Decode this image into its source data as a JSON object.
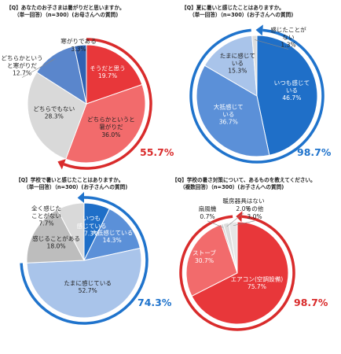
{
  "chart_data": [
    {
      "type": "pie",
      "title": "【Q】あなたのお子さまは暑がりだと思いますか。",
      "subtitle": "（単一回答）（n=300）(お母さんへの質問)",
      "total": "55.7%",
      "total_color": "#d92b2b",
      "slices": [
        {
          "label": "そうだと思う",
          "value": 19.7,
          "color": "#e8373a",
          "text_color": "#ffffff"
        },
        {
          "label": "どちらかといえば暑がりだ",
          "display": [
            "どちらかというと",
            "暑がりだ"
          ],
          "value": 36.0,
          "color": "#f26b6c",
          "text_color": "#222222"
        },
        {
          "label": "どちらでもない",
          "value": 28.3,
          "color": "#d9d9d9",
          "text_color": "#222222"
        },
        {
          "label": "どちらかというと寒がりだ",
          "display": [
            "どちらかという",
            "と寒がりだ"
          ],
          "value": 12.7,
          "color": "#5a86cc",
          "text_color": "#222222"
        },
        {
          "label": "寒がりである",
          "value": 3.3,
          "color": "#2f62b3",
          "text_color": "#222222"
        }
      ]
    },
    {
      "type": "pie",
      "title": "【Q】夏に暑いと感じたことはありますか。",
      "subtitle": "（単一回答）（n=300）(お子さんへの質問)",
      "total": "98.7%",
      "total_color": "#1f73cc",
      "slices": [
        {
          "label": "いつも感じている",
          "display": [
            "いつも感じて",
            "いる"
          ],
          "value": 46.7,
          "color": "#1f6fc8",
          "text_color": "#ffffff"
        },
        {
          "label": "大抵感じている",
          "display": [
            "大抵感じて",
            "いる"
          ],
          "value": 36.7,
          "color": "#5b90d8",
          "text_color": "#ffffff"
        },
        {
          "label": "たまに感じている",
          "display": [
            "たまに感じて",
            "いる"
          ],
          "value": 15.3,
          "color": "#a9c4ea",
          "text_color": "#222222"
        },
        {
          "label": "感じたことがない",
          "display": [
            "感じたことが",
            "ない"
          ],
          "value": 1.3,
          "color": "#dddddd",
          "text_color": "#222222"
        }
      ]
    },
    {
      "type": "pie",
      "title": "【Q】学校で暑いと感じたことはありますか。",
      "subtitle": "（単一回答）（n=300）(お子さんへの質問)",
      "total": "74.3%",
      "total_color": "#1f73cc",
      "slices": [
        {
          "label": "いつも感じている",
          "display": [
            "いつも",
            "感じている"
          ],
          "value": 7.3,
          "color": "#1f6fc8",
          "text_color": "#ffffff"
        },
        {
          "label": "大抵感じている",
          "value": 14.3,
          "color": "#5b90d8",
          "text_color": "#ffffff"
        },
        {
          "label": "たまに感じている",
          "value": 52.7,
          "color": "#a9c4ea",
          "text_color": "#222222"
        },
        {
          "label": "感じることがある",
          "value": 18.0,
          "color": "#bdbdbd",
          "text_color": "#222222"
        },
        {
          "label": "全く感じたことがない",
          "display": [
            "全く感じた",
            "ことがない"
          ],
          "value": 7.7,
          "color": "#d9d9d9",
          "text_color": "#222222"
        }
      ]
    },
    {
      "type": "pie",
      "title": "【Q】学校の暑さ対策について、あるものを教えてください。",
      "subtitle": "（複数回答）（n=300）(お子さんへの質問)",
      "total": "98.7%",
      "total_color": "#d92b2b",
      "slices": [
        {
          "label": "エアコン(空調設備)",
          "value": 75.7,
          "color": "#e8373a",
          "text_color": "#ffffff"
        },
        {
          "label": "ストーブ",
          "value": 30.7,
          "color": "#f26b6c",
          "text_color": "#ffffff"
        },
        {
          "label": "扇風機",
          "value": 0.7,
          "color": "#cccccc",
          "text_color": "#222222"
        },
        {
          "label": "暖房器具はない",
          "value": 2.0,
          "color": "#dddddd",
          "text_color": "#222222"
        },
        {
          "label": "その他",
          "value": 3.0,
          "color": "#e6e6e6",
          "text_color": "#222222"
        }
      ]
    }
  ]
}
